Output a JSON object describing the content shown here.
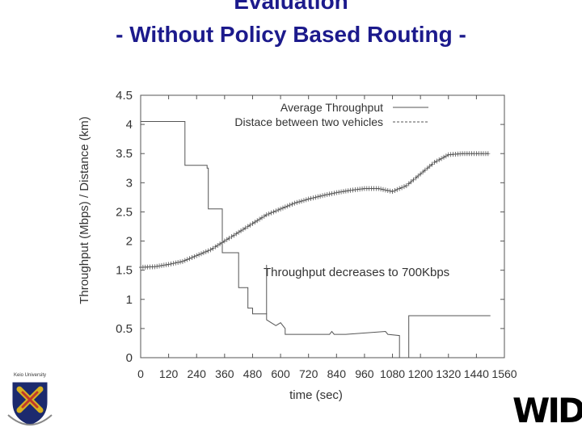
{
  "slide": {
    "title_line1": "Evaluation",
    "title_line2": "- Without Policy Based Routing -",
    "university_logo_text": "Keio University",
    "brand_logo_text": "WIDE"
  },
  "chart_data": {
    "type": "line",
    "xlabel": "time (sec)",
    "ylabel": "Throughput (Mbps) / Distance (km)",
    "xlim": [
      0,
      1560
    ],
    "ylim": [
      0,
      4.5
    ],
    "xticks": [
      0,
      120,
      240,
      360,
      480,
      600,
      720,
      840,
      960,
      1080,
      1200,
      1320,
      1440,
      1560
    ],
    "yticks": [
      0,
      0.5,
      1,
      1.5,
      2,
      2.5,
      3,
      3.5,
      4,
      4.5
    ],
    "legend_position": "top-right",
    "annotation": "Throughput decreases to 700Kbps",
    "series": [
      {
        "name": "Average Throughput",
        "style": "solid",
        "color": "#555555",
        "x": [
          0,
          190,
          190,
          285,
          285,
          290,
          290,
          350,
          350,
          420,
          420,
          460,
          460,
          480,
          480,
          540,
          540,
          560,
          580,
          600,
          620,
          620,
          810,
          820,
          830,
          880,
          1050,
          1060,
          1110,
          1110,
          1150,
          1150,
          1500
        ],
        "y": [
          4.05,
          4.05,
          3.3,
          3.3,
          3.25,
          3.25,
          2.55,
          2.55,
          1.8,
          1.8,
          1.2,
          1.2,
          0.85,
          0.85,
          0.75,
          0.75,
          0.65,
          0.6,
          0.55,
          0.6,
          0.5,
          0.4,
          0.4,
          0.45,
          0.4,
          0.4,
          0.45,
          0.4,
          0.38,
          0.0,
          0.0,
          0.72,
          0.72
        ]
      },
      {
        "name": "Distace between two vehicles",
        "style": "dashed-cross",
        "color": "#555555",
        "x": [
          0,
          60,
          120,
          180,
          240,
          300,
          360,
          420,
          480,
          540,
          600,
          660,
          720,
          780,
          840,
          900,
          960,
          1020,
          1080,
          1140,
          1200,
          1260,
          1320,
          1380,
          1440,
          1500
        ],
        "y": [
          1.55,
          1.56,
          1.6,
          1.65,
          1.75,
          1.85,
          2.0,
          2.15,
          2.3,
          2.45,
          2.55,
          2.65,
          2.72,
          2.78,
          2.83,
          2.87,
          2.9,
          2.9,
          2.85,
          2.95,
          3.15,
          3.35,
          3.48,
          3.5,
          3.5,
          3.5
        ]
      }
    ]
  }
}
